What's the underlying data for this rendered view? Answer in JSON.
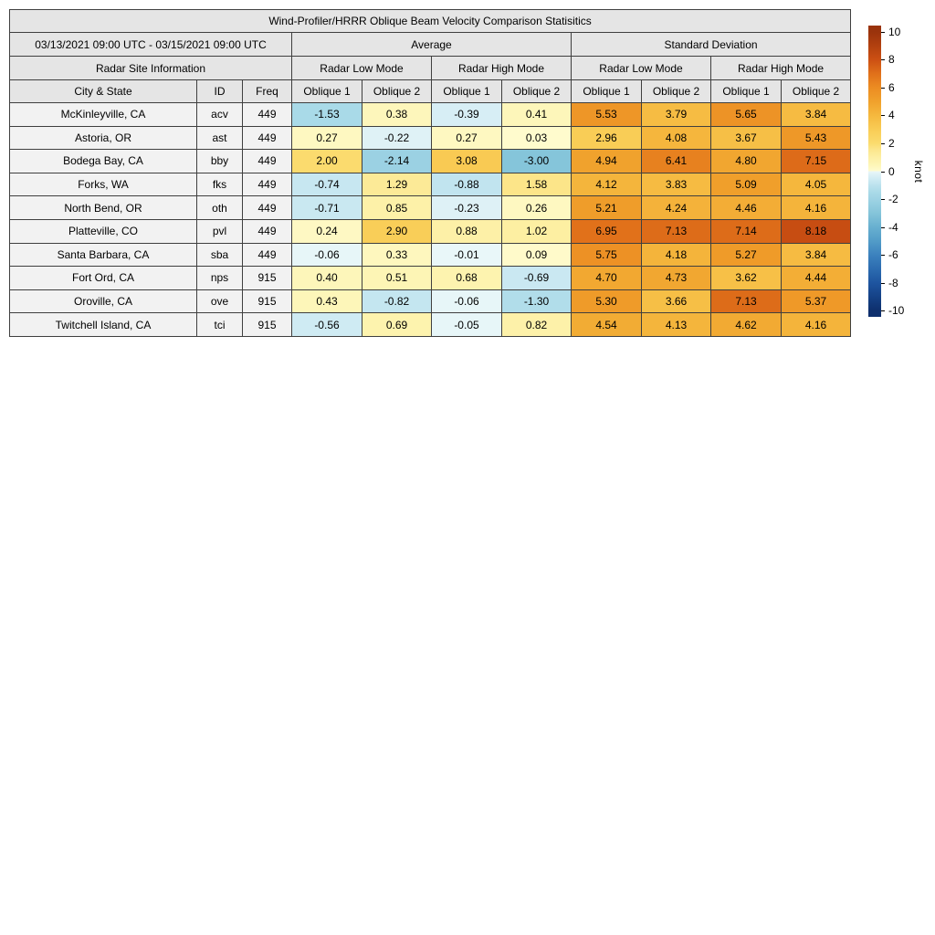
{
  "chart_data": {
    "type": "heatmap-table",
    "title": "Wind-Profiler/HRRR Oblique Beam Velocity Comparison Statisitics",
    "date_range": "03/13/2021 09:00 UTC - 03/15/2021 09:00 UTC",
    "section_headers": [
      "Average",
      "Standard Deviation"
    ],
    "site_info_header": "Radar Site Information",
    "mode_headers": [
      "Radar Low Mode",
      "Radar High Mode",
      "Radar Low Mode",
      "Radar High Mode"
    ],
    "column_headers": [
      "City & State",
      "ID",
      "Freq"
    ],
    "oblique_headers": [
      "Oblique 1",
      "Oblique 2",
      "Oblique 1",
      "Oblique 2",
      "Oblique 1",
      "Oblique 2",
      "Oblique 1",
      "Oblique 2"
    ],
    "rows": [
      {
        "city": "McKinleyville, CA",
        "id": "acv",
        "freq": "449",
        "values": [
          -1.53,
          0.38,
          -0.39,
          0.41,
          5.53,
          3.79,
          5.65,
          3.84
        ]
      },
      {
        "city": "Astoria, OR",
        "id": "ast",
        "freq": "449",
        "values": [
          0.27,
          -0.22,
          0.27,
          0.03,
          2.96,
          4.08,
          3.67,
          5.43
        ]
      },
      {
        "city": "Bodega Bay, CA",
        "id": "bby",
        "freq": "449",
        "values": [
          2.0,
          -2.14,
          3.08,
          -3.0,
          4.94,
          6.41,
          4.8,
          7.15
        ]
      },
      {
        "city": "Forks, WA",
        "id": "fks",
        "freq": "449",
        "values": [
          -0.74,
          1.29,
          -0.88,
          1.58,
          4.12,
          3.83,
          5.09,
          4.05
        ]
      },
      {
        "city": "North Bend, OR",
        "id": "oth",
        "freq": "449",
        "values": [
          -0.71,
          0.85,
          -0.23,
          0.26,
          5.21,
          4.24,
          4.46,
          4.16
        ]
      },
      {
        "city": "Platteville, CO",
        "id": "pvl",
        "freq": "449",
        "values": [
          0.24,
          2.9,
          0.88,
          1.02,
          6.95,
          7.13,
          7.14,
          8.18
        ]
      },
      {
        "city": "Santa Barbara, CA",
        "id": "sba",
        "freq": "449",
        "values": [
          -0.06,
          0.33,
          -0.01,
          0.09,
          5.75,
          4.18,
          5.27,
          3.84
        ]
      },
      {
        "city": "Fort Ord, CA",
        "id": "nps",
        "freq": "915",
        "values": [
          0.4,
          0.51,
          0.68,
          -0.69,
          4.7,
          4.73,
          3.62,
          4.44
        ]
      },
      {
        "city": "Oroville, CA",
        "id": "ove",
        "freq": "915",
        "values": [
          0.43,
          -0.82,
          -0.06,
          -1.3,
          5.3,
          3.66,
          7.13,
          5.37
        ]
      },
      {
        "city": "Twitchell Island, CA",
        "id": "tci",
        "freq": "915",
        "values": [
          -0.56,
          0.69,
          -0.05,
          0.82,
          4.54,
          4.13,
          4.62,
          4.16
        ]
      }
    ],
    "colorbar": {
      "label": "knot",
      "ticks": [
        10,
        8,
        6,
        4,
        2,
        0,
        -2,
        -4,
        -6,
        -8,
        -10
      ],
      "vmax": 10.45,
      "vmin": -10.45
    },
    "colormap": {
      "positive_stops": [
        [
          0,
          "#fffbcf"
        ],
        [
          0.5,
          "#fdf5b5"
        ],
        [
          1,
          "#fdefa3"
        ],
        [
          1.5,
          "#fce78e"
        ],
        [
          2,
          "#fbdb6e"
        ],
        [
          3,
          "#f9cc55"
        ],
        [
          4,
          "#f5b83e"
        ],
        [
          5,
          "#f0a12c"
        ],
        [
          6,
          "#ec8c22"
        ],
        [
          7,
          "#e0701a"
        ],
        [
          8,
          "#cc5013"
        ],
        [
          9,
          "#b2400f"
        ],
        [
          10,
          "#9a330c"
        ]
      ],
      "negative_stops": [
        [
          0,
          "#eaf7f9"
        ],
        [
          -0.25,
          "#ddf1f6"
        ],
        [
          -0.5,
          "#d2ecf4"
        ],
        [
          -1,
          "#bce2ee"
        ],
        [
          -1.5,
          "#aadae8"
        ],
        [
          -2,
          "#9ed3e4"
        ],
        [
          -3,
          "#85c5da"
        ],
        [
          -4,
          "#68b0d0"
        ],
        [
          -5,
          "#529cc8"
        ],
        [
          -6,
          "#3c82be"
        ],
        [
          -7,
          "#2c6cb0"
        ],
        [
          -8,
          "#1e55a0"
        ],
        [
          -9,
          "#154287"
        ],
        [
          -10,
          "#0e2f6d"
        ]
      ]
    }
  },
  "colors": {
    "header_bg": "#e5e5e5",
    "label_cell_bg": "#f2f2f2",
    "border": "#3f3f3f",
    "text": "#000000",
    "page_bg": "#ffffff"
  }
}
